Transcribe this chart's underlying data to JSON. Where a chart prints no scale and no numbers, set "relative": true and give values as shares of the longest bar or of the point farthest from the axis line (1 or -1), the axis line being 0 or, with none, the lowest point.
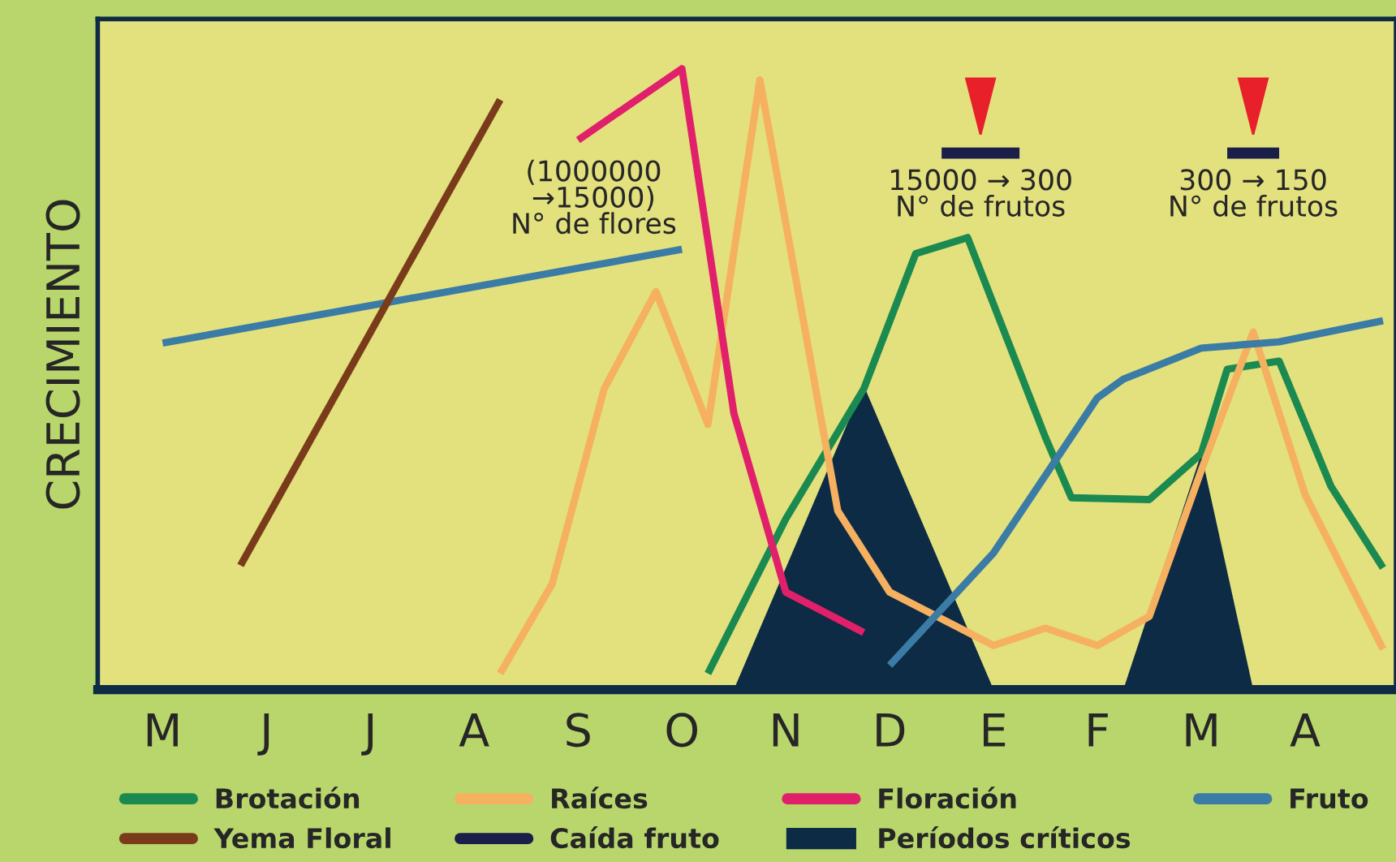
{
  "chart_data": {
    "type": "line",
    "relative": true,
    "ylabel": "CRECIMIENTO",
    "tick_labels": "x",
    "legend": "bottom",
    "grid": false,
    "categories": [
      null,
      null,
      "M",
      null,
      null,
      null,
      "J",
      null,
      null,
      null,
      "J",
      null,
      null,
      null,
      "A",
      null,
      null,
      null,
      "S",
      null,
      null,
      null,
      "O",
      null,
      null,
      null,
      "N",
      null,
      null,
      null,
      "D",
      null,
      null,
      null,
      "E",
      null,
      null,
      null,
      "F",
      null,
      null,
      null,
      "M",
      null,
      null,
      null,
      "A",
      null,
      null,
      null
    ],
    "series": [
      {
        "name": "Períodos críticos",
        "type": "area",
        "color": "#0d2b45",
        "values": [
          null,
          null,
          null,
          null,
          null,
          null,
          null,
          null,
          null,
          null,
          null,
          null,
          null,
          null,
          null,
          null,
          null,
          null,
          null,
          null,
          null,
          null,
          null,
          null,
          0,
          null,
          null,
          null,
          null,
          0.49,
          null,
          null,
          null,
          null,
          0,
          null,
          null,
          null,
          null,
          null,
          null,
          null,
          null,
          null,
          null,
          null,
          null,
          null,
          null,
          null
        ]
      },
      {
        "type": "area",
        "color": "#0d2b45",
        "values": [
          null,
          null,
          null,
          null,
          null,
          null,
          null,
          null,
          null,
          null,
          null,
          null,
          null,
          null,
          null,
          null,
          null,
          null,
          null,
          null,
          null,
          null,
          null,
          null,
          null,
          null,
          null,
          null,
          null,
          null,
          null,
          null,
          null,
          null,
          null,
          null,
          null,
          null,
          null,
          0,
          null,
          null,
          0.38,
          null,
          0,
          null,
          null,
          null,
          null,
          null
        ]
      },
      {
        "name": "Brotación",
        "color": "#1a8a50",
        "values": [
          null,
          null,
          null,
          null,
          null,
          null,
          null,
          null,
          null,
          null,
          null,
          null,
          null,
          null,
          null,
          null,
          null,
          null,
          null,
          null,
          null,
          null,
          null,
          0.026,
          null,
          null,
          0.275,
          null,
          null,
          0.484,
          null,
          0.702,
          null,
          0.728,
          null,
          null,
          0.406,
          0.309,
          null,
          null,
          0.306,
          null,
          0.38,
          0.516,
          null,
          0.529,
          null,
          0.327,
          null,
          0.196
        ]
      },
      {
        "name": "Raíces",
        "color": "#f5b060",
        "values": [
          null,
          null,
          null,
          null,
          null,
          null,
          null,
          null,
          null,
          null,
          null,
          null,
          null,
          null,
          null,
          0.026,
          null,
          0.17,
          null,
          0.484,
          null,
          0.641,
          null,
          0.427,
          null,
          0.982,
          null,
          null,
          0.288,
          null,
          0.157,
          null,
          null,
          null,
          0.071,
          null,
          0.099,
          null,
          0.071,
          null,
          0.118,
          null,
          0.353,
          null,
          0.576,
          null,
          0.314,
          null,
          null,
          0.065
        ]
      },
      {
        "name": "Floración",
        "color": "#e0206a",
        "values": [
          null,
          null,
          null,
          null,
          null,
          null,
          null,
          null,
          null,
          null,
          null,
          null,
          null,
          null,
          null,
          null,
          null,
          null,
          0.885,
          null,
          null,
          null,
          1.0,
          null,
          0.445,
          null,
          0.157,
          null,
          null,
          0.092,
          null,
          null,
          null,
          null,
          null,
          null,
          null,
          null,
          null,
          null,
          null,
          null,
          null,
          null,
          null,
          null,
          null,
          null,
          null,
          null
        ]
      },
      {
        "name": "Fruto",
        "color": "#3a7ca5",
        "values": [
          null,
          null,
          0.558,
          null,
          null,
          null,
          null,
          null,
          null,
          null,
          null,
          null,
          null,
          null,
          null,
          null,
          null,
          null,
          null,
          null,
          null,
          null,
          0.709,
          null,
          null,
          null,
          null,
          null,
          null,
          null,
          null,
          null,
          null,
          null,
          null,
          null,
          null,
          null,
          null,
          null,
          null,
          null,
          null,
          null,
          null,
          null,
          null,
          null,
          null,
          null
        ]
      },
      {
        "color": "#3a7ca5",
        "values": [
          null,
          null,
          null,
          null,
          null,
          null,
          null,
          null,
          null,
          null,
          null,
          null,
          null,
          null,
          null,
          null,
          null,
          null,
          null,
          null,
          null,
          null,
          null,
          null,
          null,
          null,
          null,
          null,
          null,
          null,
          0.039,
          null,
          null,
          null,
          0.22,
          null,
          null,
          null,
          0.47,
          0.5,
          null,
          null,
          0.55,
          null,
          null,
          0.56,
          null,
          null,
          null,
          0.594
        ]
      },
      {
        "name": "Yema Floral",
        "color": "#7a3b1a",
        "values": [
          null,
          null,
          null,
          null,
          null,
          0.2,
          null,
          null,
          null,
          null,
          null,
          null,
          null,
          null,
          null,
          0.95,
          null,
          null,
          null,
          null,
          null,
          null,
          null,
          null,
          null,
          null,
          null,
          null,
          null,
          null,
          null,
          null,
          null,
          null,
          null,
          null,
          null,
          null,
          null,
          null,
          null,
          null,
          null,
          null,
          null,
          null,
          null,
          null,
          null,
          null
        ]
      },
      {
        "name": "Caída fruto",
        "color": "#1a1f4a",
        "values": [
          null,
          null,
          null,
          null,
          null,
          null,
          null,
          null,
          null,
          null,
          null,
          null,
          null,
          null,
          null,
          null,
          null,
          null,
          null,
          null,
          null,
          null,
          null,
          null,
          null,
          null,
          null,
          null,
          null,
          null,
          null,
          null,
          0.864,
          null,
          null,
          0.864,
          null,
          null,
          null,
          null,
          null,
          null,
          null,
          null,
          null,
          null,
          null,
          null,
          null,
          null
        ]
      },
      {
        "color": "#1a1f4a",
        "values": [
          null,
          null,
          null,
          null,
          null,
          null,
          null,
          null,
          null,
          null,
          null,
          null,
          null,
          null,
          null,
          null,
          null,
          null,
          null,
          null,
          null,
          null,
          null,
          null,
          null,
          null,
          null,
          null,
          null,
          null,
          null,
          null,
          null,
          null,
          null,
          null,
          null,
          null,
          null,
          null,
          null,
          null,
          null,
          0.864,
          null,
          0.864,
          null,
          null,
          null,
          null
        ]
      }
    ],
    "annotations": [
      "(1000000\n→15000)\nN° de flores",
      "15000 → 300\nN° de frutos",
      "300 → 150\nN° de frutos"
    ]
  }
}
